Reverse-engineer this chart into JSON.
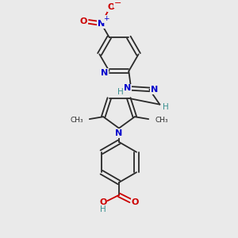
{
  "bg_color": "#eaeaea",
  "bond_color": "#2a2a2a",
  "blue_color": "#0000cc",
  "red_color": "#cc0000",
  "teal_color": "#3a9090",
  "figsize": [
    3.0,
    3.0
  ],
  "dpi": 100,
  "xlim": [
    -1.0,
    9.0
  ],
  "ylim": [
    0.0,
    10.0
  ]
}
